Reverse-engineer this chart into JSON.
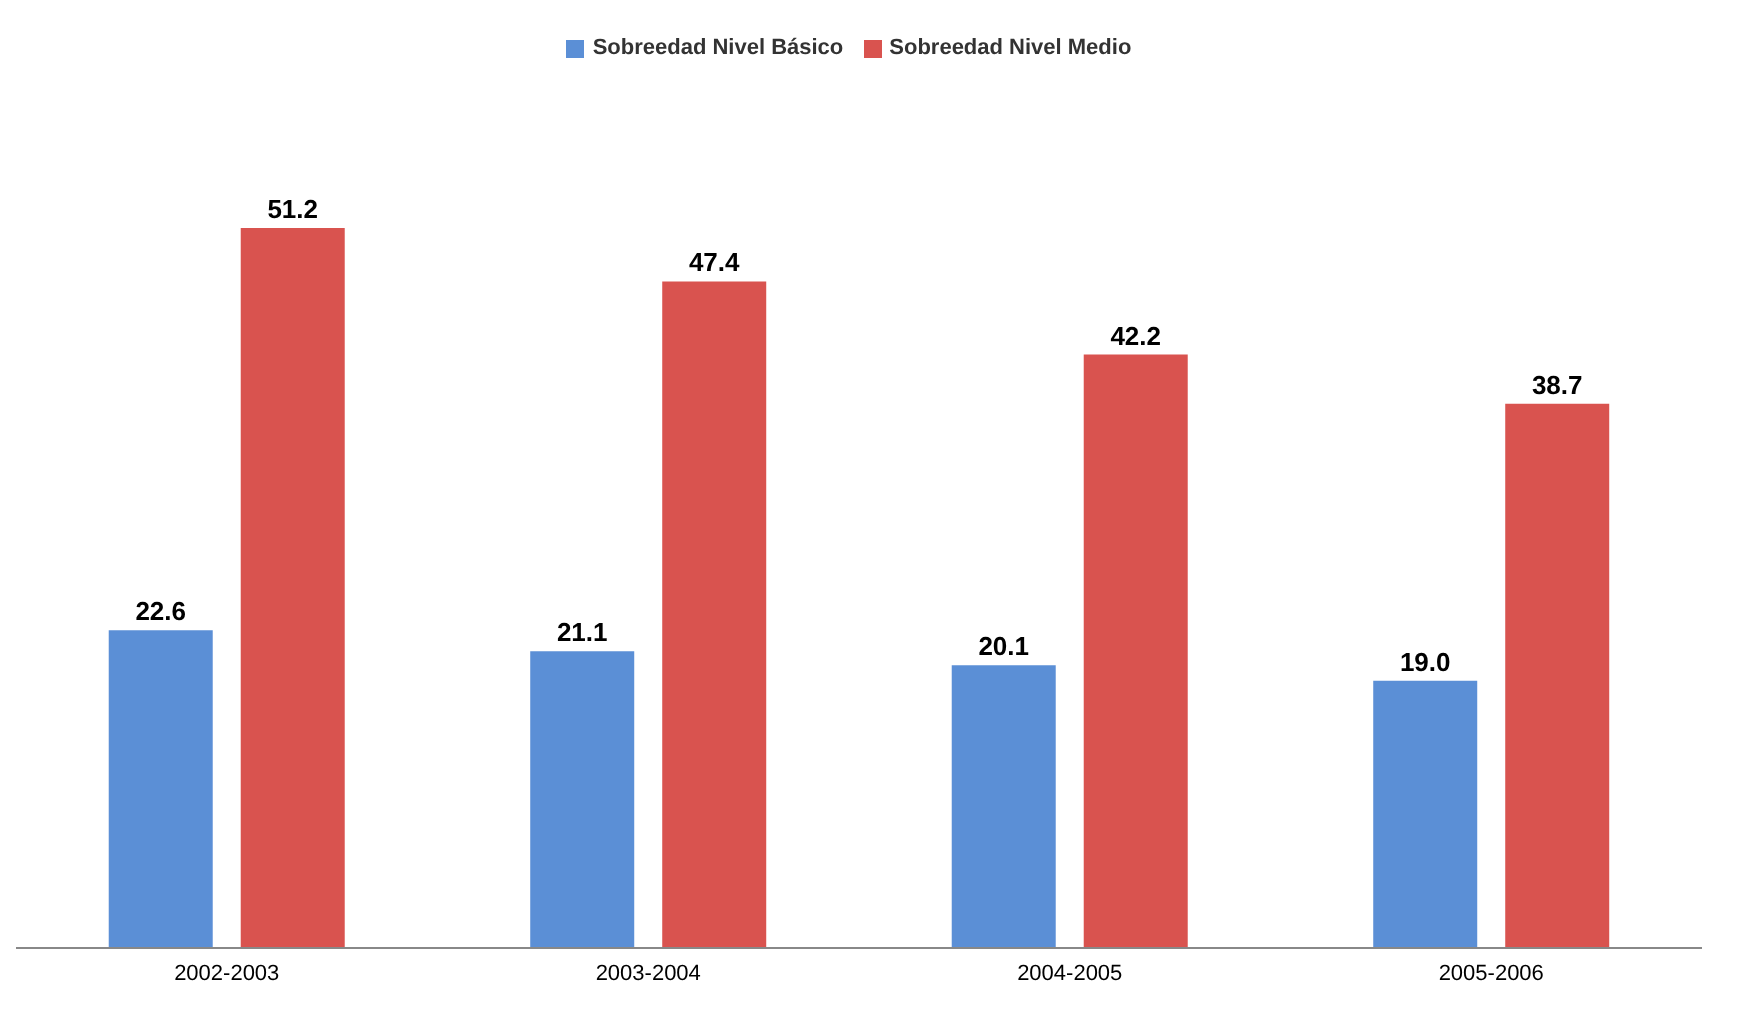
{
  "chart_data": {
    "type": "bar",
    "categories": [
      "2002-2003",
      "2003-2004",
      "2004-2005",
      "2005-2006"
    ],
    "series": [
      {
        "name": "Sobreedad Nivel Básico",
        "color": "#5b8fd6",
        "values": [
          22.6,
          21.1,
          20.1,
          19.0
        ],
        "value_labels": [
          "22.6",
          "21.1",
          "20.1",
          "19.0"
        ]
      },
      {
        "name": "Sobreedad Nivel Medio",
        "color": "#d9534f",
        "values": [
          51.2,
          47.4,
          42.2,
          38.7
        ],
        "value_labels": [
          "51.2",
          "47.4",
          "42.2",
          "38.7"
        ]
      }
    ],
    "legend": "top",
    "tick_labels": "x"
  }
}
